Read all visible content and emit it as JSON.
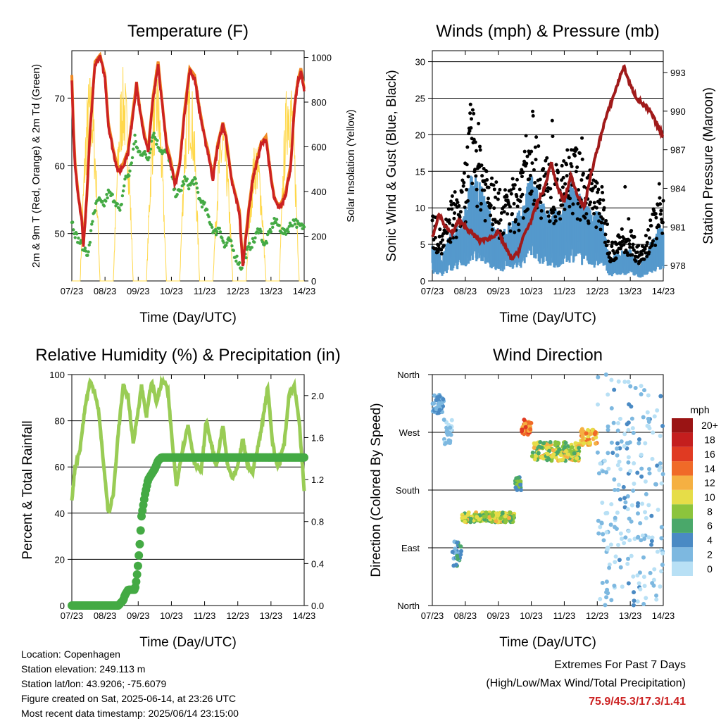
{
  "footer": {
    "location": "Location: Copenhagen",
    "elevation": "Station elevation: 249.113 m",
    "latlon": "Station lat/lon: 43.9206; -75.6079",
    "created": "Figure created on Sat, 2025-06-14, at 23:26 UTC",
    "recent": "Most recent data timestamp: 2025/06/14 23:15:00",
    "extremes_title": "Extremes For Past 7 Days",
    "extremes_sub": "(High/Low/Max Wind/Total Precipitation)",
    "extremes_values": "75.9/45.3/17.3/1.41",
    "extremes_color": "#cc2222"
  },
  "colors": {
    "temp2m": "#cc2222",
    "temp9m": "#f08a24",
    "dewpoint": "#44aa44",
    "solar": "#ffd84a",
    "wind": "#5599cc",
    "gust": "#000000",
    "pressure": "#a01a1a",
    "rh": "#99cc55",
    "precip": "#44aa44"
  },
  "chart_data": [
    {
      "id": "temp",
      "type": "line",
      "title": "Temperature (F)",
      "xlabel": "Time (Day/UTC)",
      "ylabel_left": "2m & 9m T (Red, Orange) & 2m Td (Green)",
      "ylabel_right": "Solar Insolation (Yellow)",
      "x_ticks": [
        "07/23",
        "08/23",
        "09/23",
        "10/23",
        "11/23",
        "12/23",
        "13/23",
        "14/23"
      ],
      "y_left_ticks": [
        50,
        60,
        70
      ],
      "ylim_left": [
        43,
        77
      ],
      "y_right_ticks": [
        0,
        200,
        400,
        600,
        800,
        1000
      ],
      "ylim_right": [
        0,
        1030
      ],
      "grid": "horizontal",
      "series": [
        {
          "key": "t2m",
          "x": [
            0,
            0.05,
            0.1,
            0.2,
            0.3,
            0.35,
            0.45,
            0.55,
            0.7,
            0.85,
            1.0,
            1.1,
            1.25,
            1.4,
            1.55,
            1.7,
            1.85,
            1.95,
            2.05,
            2.2,
            2.3,
            2.45,
            2.6,
            2.7,
            2.85,
            3.0,
            3.1,
            3.25,
            3.4,
            3.55,
            3.7,
            3.85,
            4.0,
            4.1,
            4.25,
            4.4,
            4.55,
            4.65,
            4.8,
            4.95,
            5.05,
            5.15,
            5.3,
            5.45,
            5.55,
            5.7,
            5.85,
            6.0,
            6.1,
            6.2,
            6.3,
            6.45,
            6.6,
            6.7,
            6.8,
            6.9,
            7.0
          ],
          "y": [
            73,
            65,
            60,
            55,
            52,
            48,
            55,
            65,
            75,
            76,
            73,
            66,
            62,
            59,
            60,
            62,
            68,
            72,
            68,
            64,
            62,
            70,
            75,
            70,
            63,
            60,
            57,
            60,
            68,
            74,
            73,
            68,
            64,
            62,
            58,
            63,
            66,
            64,
            58,
            55,
            53,
            45,
            52,
            58,
            60,
            63,
            64,
            58,
            55,
            54,
            54,
            56,
            60,
            68,
            72,
            74,
            71
          ]
        },
        {
          "key": "td2m",
          "x": [
            0,
            0.1,
            0.2,
            0.35,
            0.5,
            0.65,
            0.8,
            0.95,
            1.1,
            1.3,
            1.45,
            1.6,
            1.75,
            1.9,
            2.0,
            2.15,
            2.3,
            2.45,
            2.6,
            2.75,
            2.9,
            3.1,
            3.25,
            3.4,
            3.55,
            3.7,
            3.85,
            4.0,
            4.15,
            4.3,
            4.45,
            4.6,
            4.75,
            4.9,
            5.0,
            5.1,
            5.25,
            5.35,
            5.5,
            5.65,
            5.8,
            5.95,
            6.1,
            6.25,
            6.4,
            6.55,
            6.7,
            6.85,
            7.0
          ],
          "y": [
            52,
            50,
            49,
            48,
            47,
            53,
            55,
            54,
            56,
            55,
            53,
            58,
            59,
            64,
            62,
            62,
            61,
            65,
            63,
            62,
            62,
            56,
            56,
            58,
            57,
            58,
            55,
            54,
            52,
            50,
            51,
            48,
            49,
            47,
            46,
            45,
            47,
            48,
            49,
            51,
            48,
            50,
            52,
            51,
            50,
            51,
            52,
            51,
            51
          ]
        },
        {
          "key": "solar",
          "peaks": [
            0.55,
            1.55,
            2.55,
            3.55,
            4.55,
            5.55,
            6.55
          ],
          "peak_values": [
            940,
            960,
            960,
            950,
            740,
            640,
            970
          ]
        }
      ]
    },
    {
      "id": "wind",
      "type": "scatter",
      "title": "Winds (mph) & Pressure (mb)",
      "xlabel": "Time (Day/UTC)",
      "ylabel_left": "Sonic Wind & Gust (Blue, Black)",
      "ylabel_right": "Station Pressure (Maroon)",
      "x_ticks": [
        "07/23",
        "08/23",
        "09/23",
        "10/23",
        "11/23",
        "12/23",
        "13/23",
        "14/23"
      ],
      "y_left_ticks": [
        0,
        5,
        10,
        15,
        20,
        25,
        30
      ],
      "ylim_left": [
        0,
        31.5
      ],
      "y_right_ticks": [
        978,
        981,
        984,
        987,
        990,
        993
      ],
      "ylim_right": [
        976.8,
        994.7
      ],
      "grid": "horizontal",
      "series": [
        {
          "key": "gust_envelope",
          "x": [
            0,
            0.3,
            0.6,
            0.9,
            1.2,
            1.5,
            1.8,
            2.1,
            2.4,
            2.7,
            3.0,
            3.3,
            3.6,
            3.9,
            4.2,
            4.5,
            4.8,
            5.1,
            5.4,
            5.7,
            6.0,
            6.3,
            6.6,
            6.9,
            7.0
          ],
          "y": [
            9,
            6,
            11,
            12,
            23,
            18,
            13,
            11,
            13,
            14,
            22,
            17,
            15,
            14,
            18,
            16,
            14,
            13,
            5,
            6,
            7,
            4,
            8,
            11,
            12
          ]
        },
        {
          "key": "wind_envelope",
          "x": [
            0,
            0.3,
            0.6,
            0.9,
            1.2,
            1.5,
            1.8,
            2.1,
            2.4,
            2.7,
            3.0,
            3.3,
            3.6,
            3.9,
            4.2,
            4.5,
            4.8,
            5.1,
            5.4,
            5.7,
            6.0,
            6.3,
            6.6,
            6.9,
            7.0
          ],
          "y": [
            5,
            3,
            7,
            7,
            14,
            12,
            8,
            6,
            8,
            9,
            14,
            10,
            9,
            9,
            13,
            11,
            9,
            9,
            3,
            4,
            4,
            2,
            5,
            7,
            8
          ]
        },
        {
          "key": "pressure",
          "x": [
            0,
            0.2,
            0.4,
            0.6,
            0.8,
            1.0,
            1.2,
            1.4,
            1.6,
            1.8,
            2.0,
            2.2,
            2.4,
            2.6,
            2.8,
            3.0,
            3.2,
            3.4,
            3.6,
            3.8,
            4.0,
            4.2,
            4.4,
            4.6,
            4.8,
            5.0,
            5.2,
            5.4,
            5.6,
            5.8,
            6.0,
            6.2,
            6.4,
            6.6,
            6.8,
            7.0
          ],
          "y": [
            980.2,
            982,
            981,
            980.5,
            981.5,
            981,
            980.5,
            980,
            980,
            980.2,
            980.6,
            979.5,
            978.5,
            979,
            980.5,
            981.5,
            983,
            984,
            986,
            984,
            983,
            985,
            983.5,
            982.5,
            985,
            987,
            989,
            990.5,
            992,
            993.5,
            992,
            991,
            990.5,
            990,
            989,
            988
          ]
        }
      ]
    },
    {
      "id": "rh",
      "type": "line",
      "title": "Relative Humidity (%) & Precipitation (in)",
      "xlabel": "Time (Day/UTC)",
      "ylabel_left": "Percent & Total Rainfall",
      "x_ticks": [
        "07/23",
        "08/23",
        "09/23",
        "10/23",
        "11/23",
        "12/23",
        "13/23",
        "14/23"
      ],
      "y_left_ticks": [
        0,
        20,
        40,
        60,
        80,
        100
      ],
      "ylim_left": [
        0,
        100
      ],
      "y_right_ticks": [
        "0.0",
        "0.4",
        "0.8",
        "1.2",
        "1.6",
        "2.0"
      ],
      "ylim_right": [
        0,
        2.2
      ],
      "grid": "horizontal",
      "series": [
        {
          "key": "rh",
          "x": [
            0,
            0.1,
            0.25,
            0.4,
            0.55,
            0.7,
            0.8,
            0.9,
            1.0,
            1.1,
            1.25,
            1.4,
            1.55,
            1.7,
            1.85,
            2.0,
            2.1,
            2.25,
            2.4,
            2.55,
            2.7,
            2.8,
            2.9,
            3.0,
            3.15,
            3.3,
            3.5,
            3.7,
            3.9,
            4.05,
            4.2,
            4.35,
            4.55,
            4.7,
            4.85,
            5.0,
            5.15,
            5.3,
            5.45,
            5.6,
            5.75,
            5.9,
            6.05,
            6.2,
            6.4,
            6.55,
            6.7,
            6.85,
            7.0
          ],
          "y": [
            46,
            60,
            68,
            86,
            97,
            92,
            85,
            70,
            55,
            40,
            48,
            75,
            95,
            90,
            70,
            85,
            95,
            82,
            97,
            88,
            96,
            97,
            92,
            75,
            52,
            65,
            78,
            62,
            58,
            80,
            70,
            60,
            78,
            60,
            55,
            60,
            72,
            60,
            58,
            68,
            80,
            95,
            70,
            60,
            70,
            92,
            95,
            80,
            50
          ]
        },
        {
          "key": "precip",
          "x": [
            0,
            0.5,
            1.0,
            1.4,
            1.55,
            1.6,
            1.7,
            1.8,
            1.9,
            1.95,
            2.0,
            2.05,
            2.1,
            2.2,
            2.3,
            2.5,
            2.6,
            2.7,
            3.0,
            4.0,
            5.0,
            6.0,
            7.0
          ],
          "y": [
            0,
            0,
            0,
            0,
            0.05,
            0.1,
            0.15,
            0.15,
            0.15,
            0.25,
            0.4,
            0.6,
            0.85,
            1.05,
            1.2,
            1.3,
            1.38,
            1.41,
            1.41,
            1.41,
            1.41,
            1.41,
            1.41
          ]
        }
      ]
    },
    {
      "id": "dir",
      "type": "scatter",
      "title": "Wind Direction",
      "xlabel": "Time (Day/UTC)",
      "ylabel_left": "Direction (Colored By Speed)",
      "x_ticks": [
        "07/23",
        "08/23",
        "09/23",
        "10/23",
        "11/23",
        "12/23",
        "13/23",
        "14/23"
      ],
      "y_ticks": [
        "North",
        "East",
        "South",
        "West",
        "North"
      ],
      "ylim": [
        0,
        360
      ],
      "grid": "horizontal",
      "colorbar": {
        "title": "mph",
        "labels": [
          "0",
          "2",
          "4",
          "6",
          "8",
          "10",
          "12",
          "14",
          "16",
          "18",
          "20+"
        ],
        "colors": [
          "#b8e0f5",
          "#7db8e0",
          "#4a8ac4",
          "#4aa86a",
          "#8cc43c",
          "#e6dd48",
          "#f5b042",
          "#f06a28",
          "#e03a22",
          "#c41e1e",
          "#9a1414"
        ]
      },
      "segments": [
        {
          "x": [
            0,
            0.35
          ],
          "dir": [
            300,
            330
          ],
          "speed": [
            2,
            6
          ]
        },
        {
          "x": [
            0.35,
            0.6
          ],
          "dir": [
            250,
            290
          ],
          "speed": [
            1,
            4
          ]
        },
        {
          "x": [
            0.6,
            0.9
          ],
          "dir": [
            60,
            100
          ],
          "speed": [
            3,
            7
          ]
        },
        {
          "x": [
            0.9,
            2.5
          ],
          "dir": [
            130,
            145
          ],
          "speed": [
            6,
            13
          ]
        },
        {
          "x": [
            2.5,
            2.7
          ],
          "dir": [
            180,
            200
          ],
          "speed": [
            5,
            9
          ]
        },
        {
          "x": [
            2.7,
            3.0
          ],
          "dir": [
            265,
            290
          ],
          "speed": [
            13,
            17
          ]
        },
        {
          "x": [
            3.0,
            4.5
          ],
          "dir": [
            225,
            255
          ],
          "speed": [
            6,
            13
          ]
        },
        {
          "x": [
            4.5,
            5.0
          ],
          "dir": [
            250,
            275
          ],
          "speed": [
            10,
            15
          ]
        },
        {
          "x": [
            5.0,
            5.4
          ],
          "dir": [
            0,
            360
          ],
          "speed": [
            0,
            4
          ]
        },
        {
          "x": [
            5.4,
            7.0
          ],
          "dir": [
            0,
            360
          ],
          "speed": [
            0,
            5
          ]
        }
      ]
    }
  ]
}
